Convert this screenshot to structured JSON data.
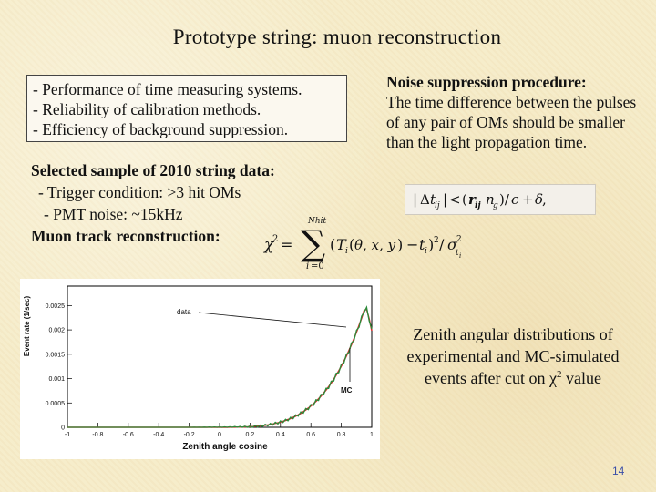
{
  "title": "Prototype string:  muon reconstruction",
  "goals": [
    "- Performance of time measuring systems.",
    "- Reliability of calibration methods.",
    "- Efficiency of background suppression."
  ],
  "sample": {
    "heading": "Selected sample of 2010 string data:",
    "items": [
      "- Trigger condition: >3 hit OMs",
      "- PMT noise: ~15kHz"
    ],
    "muon_label": "Muon track reconstruction:"
  },
  "noise": {
    "heading": "Noise suppression procedure:",
    "text": "The time difference between the pulses of any pair of OMs should be smaller than the light propagation time."
  },
  "plot": {
    "y_axis_label": "Event rate (1/sec)",
    "x_axis_label": "Zenith angle cosine",
    "y_ticks": [
      "0",
      "0.0005",
      "0.001",
      "0.0015",
      "0.002",
      "0.0025"
    ],
    "x_ticks": [
      "-1",
      "-0.8",
      "-0.6",
      "-0.4",
      "-0.2",
      "0",
      "0.2",
      "0.4",
      "0.6",
      "0.8",
      "1"
    ],
    "data_label": "data",
    "mc_label": "MC"
  },
  "caption": {
    "text": "Zenith angular distributions of experimental and MC-simulated events after cut on",
    "chi": "χ",
    "sup": "2",
    "value_word": "value"
  },
  "page_number": "14",
  "colors": {
    "background": "#f6ecc9",
    "data_series": "#2a8c3a",
    "mc_series": "#d62828"
  }
}
